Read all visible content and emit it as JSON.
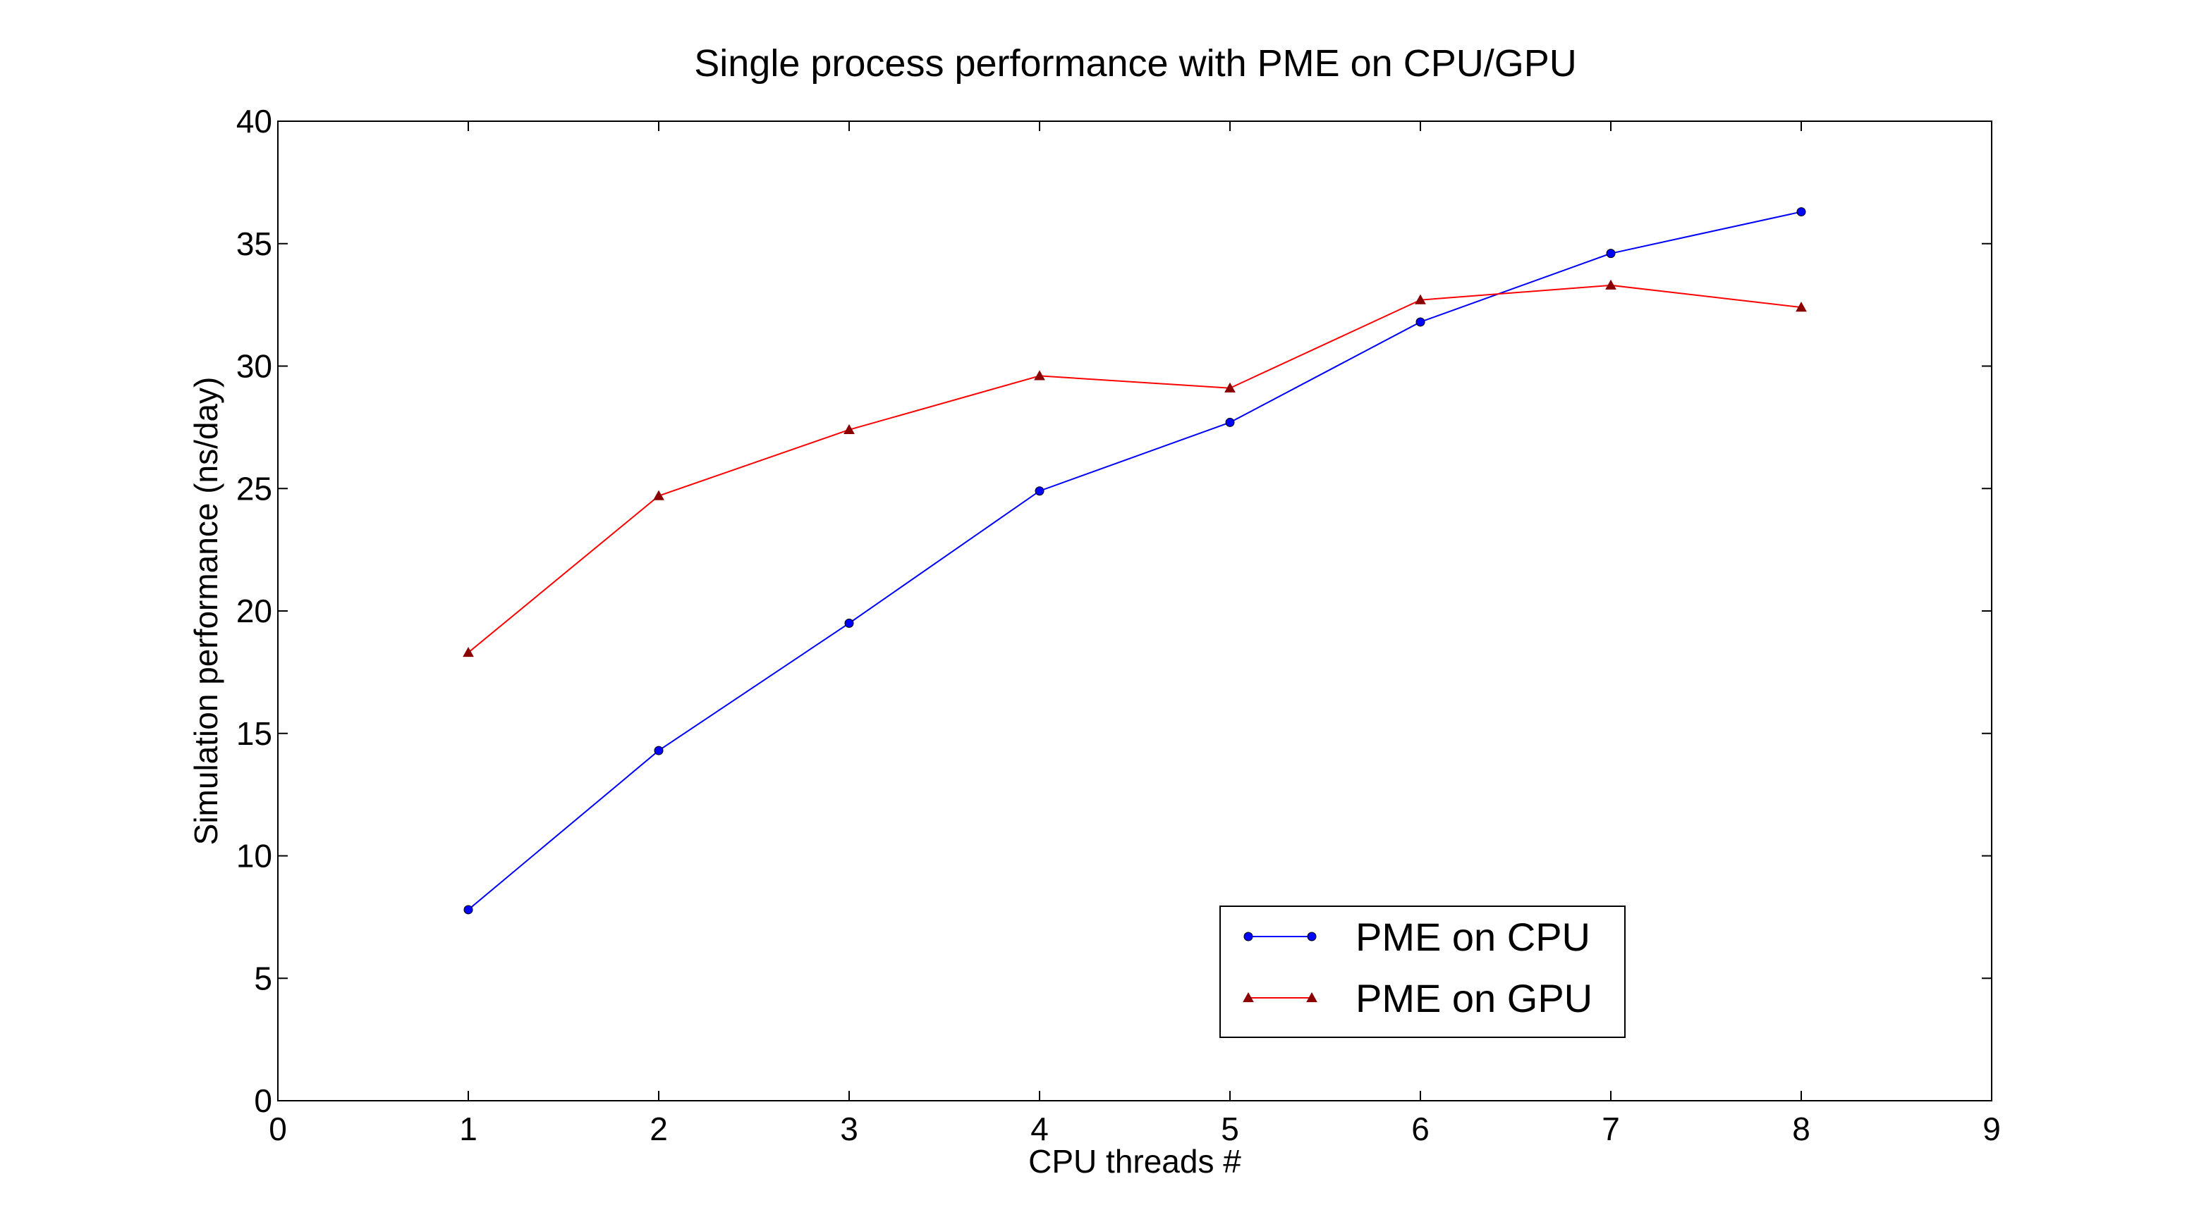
{
  "chart_data": {
    "type": "line",
    "title": "Single process performance with PME on CPU/GPU",
    "xlabel": "CPU threads #",
    "ylabel": "Simulation performance (ns/day)",
    "xlim": [
      0,
      9
    ],
    "ylim": [
      0,
      40
    ],
    "xticks": [
      0,
      1,
      2,
      3,
      4,
      5,
      6,
      7,
      8,
      9
    ],
    "yticks": [
      0,
      5,
      10,
      15,
      20,
      25,
      30,
      35,
      40
    ],
    "grid": false,
    "legend_position": "lower-right",
    "series": [
      {
        "name": "PME on CPU",
        "color": "#0000ff",
        "marker": "circle",
        "x": [
          1,
          2,
          3,
          4,
          5,
          6,
          7,
          8
        ],
        "y": [
          7.8,
          14.3,
          19.5,
          24.9,
          27.7,
          31.8,
          34.6,
          36.3
        ]
      },
      {
        "name": "PME on GPU",
        "color": "#ff0000",
        "marker_color": "#8b0000",
        "marker": "triangle",
        "x": [
          1,
          2,
          3,
          4,
          5,
          6,
          7,
          8
        ],
        "y": [
          18.3,
          24.7,
          27.4,
          29.6,
          29.1,
          32.7,
          33.3,
          32.4
        ]
      }
    ]
  }
}
